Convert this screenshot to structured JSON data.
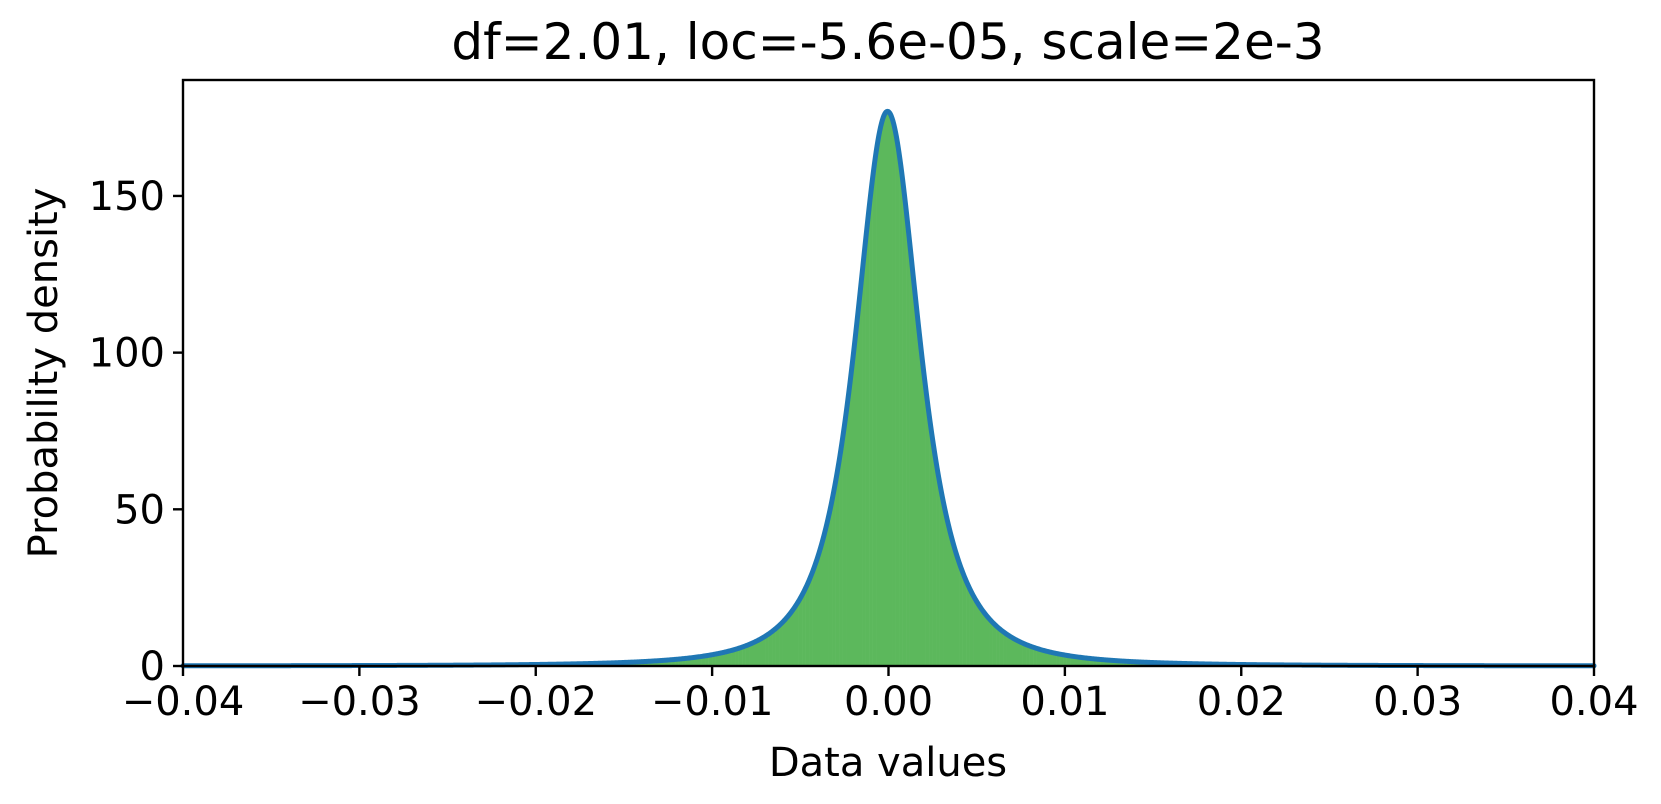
{
  "chart_data": {
    "type": "area",
    "title": "df=2.01, loc=-5.6e-05, scale=2e-3",
    "xlabel": "Data values",
    "ylabel": "Probability density",
    "xlim": [
      -0.04,
      0.04
    ],
    "ylim": [
      0,
      187
    ],
    "xticks": [
      -0.04,
      -0.03,
      -0.02,
      -0.01,
      0.0,
      0.01,
      0.02,
      0.03,
      0.04
    ],
    "xtick_labels": [
      "−0.04",
      "−0.03",
      "−0.02",
      "−0.01",
      "0.00",
      "0.01",
      "0.02",
      "0.03",
      "0.04"
    ],
    "yticks": [
      0,
      50,
      100,
      150
    ],
    "ytick_labels": [
      "0",
      "50",
      "100",
      "150"
    ],
    "grid": false,
    "legend": "none",
    "distribution": {
      "family": "student-t",
      "df": 2.01,
      "loc": -5.6e-05,
      "scale": 0.002,
      "peak_density": 177
    },
    "histogram": {
      "x": [
        -0.0095,
        -0.0085,
        -0.0075,
        -0.0065,
        -0.0055,
        -0.0045,
        -0.0035,
        -0.0025,
        -0.0015,
        -0.0005,
        0.0005,
        0.0015,
        0.0025,
        0.0035,
        0.0045,
        0.0055,
        0.0065,
        0.0075,
        0.0085,
        0.0095
      ],
      "values": [
        4.2,
        5.5,
        7.5,
        10.5,
        15.5,
        24,
        40,
        70,
        120,
        170,
        172,
        122,
        72,
        41,
        25,
        16,
        11,
        7.7,
        5.6,
        4.3
      ]
    },
    "colors": {
      "histogram": "#5cb85c",
      "pdf_line": "#1f77b4"
    }
  }
}
